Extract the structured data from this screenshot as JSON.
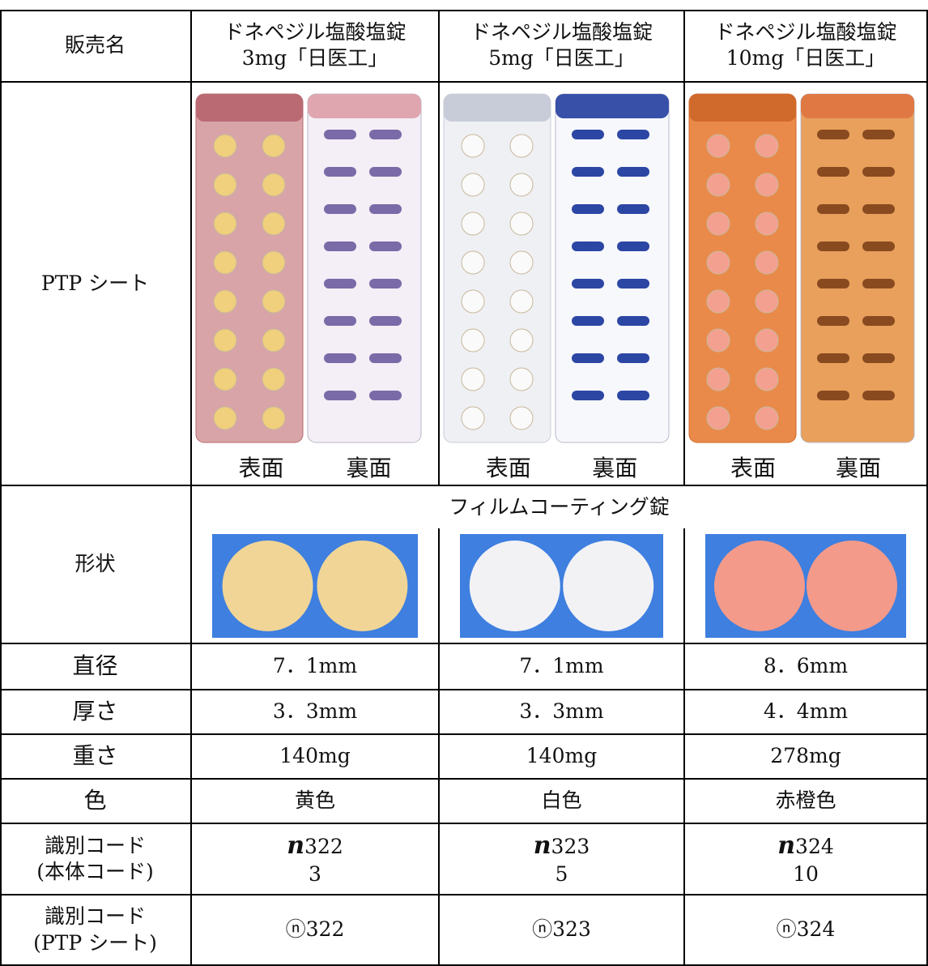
{
  "table": {
    "header": {
      "label": "販売名",
      "names": [
        [
          "ドネペジル塩酸塩錠",
          "3mg「日医工」"
        ],
        [
          "ドネペジル塩酸塩錠",
          "5mg「日医工」"
        ],
        [
          "ドネペジル塩酸塩錠",
          "10mg「日医工」"
        ]
      ]
    },
    "ptp": {
      "label": "PTP シート",
      "captions": [
        [
          "表面",
          "裏面"
        ],
        [
          "表面",
          "裏面"
        ],
        [
          "表面",
          "裏面"
        ]
      ]
    },
    "shape": {
      "label": "形状",
      "type": "フィルムコーティング錠"
    },
    "rows": [
      {
        "label": "直径",
        "values": [
          "7．1mm",
          "7．1mm",
          "8．6mm"
        ]
      },
      {
        "label": "厚さ",
        "values": [
          "3．3mm",
          "3．3mm",
          "4．4mm"
        ]
      },
      {
        "label": "重さ",
        "values": [
          "140mg",
          "140mg",
          "278mg"
        ]
      },
      {
        "label": "色",
        "values": [
          "黄色",
          "白色",
          "赤橙色"
        ]
      }
    ],
    "code_body": {
      "label": [
        "識別コード",
        "(本体コード)"
      ],
      "mark": "n",
      "values": [
        [
          "322",
          "3"
        ],
        [
          "323",
          "5"
        ],
        [
          "324",
          "10"
        ]
      ]
    },
    "code_ptp": {
      "label": [
        "識別コード",
        "(PTP シート)"
      ],
      "values": [
        "ⓝ322",
        "ⓝ323",
        "ⓝ324"
      ]
    }
  }
}
